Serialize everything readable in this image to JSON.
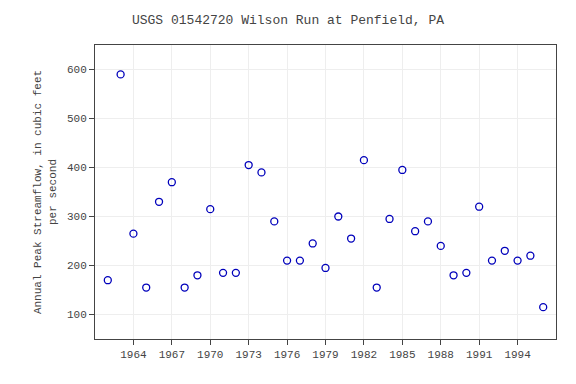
{
  "chart_data": {
    "type": "scatter",
    "title": "USGS 01542720 Wilson Run at Penfield, PA",
    "ylabel": "Annual Peak Streamflow, in cubic feet\nper second",
    "x": [
      1962,
      1963,
      1964,
      1965,
      1966,
      1967,
      1968,
      1969,
      1970,
      1971,
      1972,
      1973,
      1974,
      1975,
      1976,
      1977,
      1978,
      1979,
      1980,
      1981,
      1982,
      1983,
      1984,
      1985,
      1986,
      1987,
      1988,
      1989,
      1990,
      1991,
      1992,
      1993,
      1994,
      1995,
      1996
    ],
    "values": [
      170,
      590,
      265,
      155,
      330,
      370,
      155,
      180,
      315,
      185,
      185,
      405,
      390,
      290,
      210,
      210,
      245,
      195,
      300,
      255,
      415,
      155,
      295,
      395,
      270,
      290,
      240,
      180,
      185,
      320,
      210,
      230,
      210,
      220,
      115
    ],
    "color": "#0000BB",
    "marker": "circle-open",
    "xlim": [
      1961,
      1997
    ],
    "ylim": [
      50,
      650
    ],
    "xticks": [
      1964,
      1967,
      1970,
      1973,
      1976,
      1979,
      1982,
      1985,
      1988,
      1991,
      1994
    ],
    "yticks": [
      100,
      200,
      300,
      400,
      500,
      600
    ],
    "grid": true
  }
}
